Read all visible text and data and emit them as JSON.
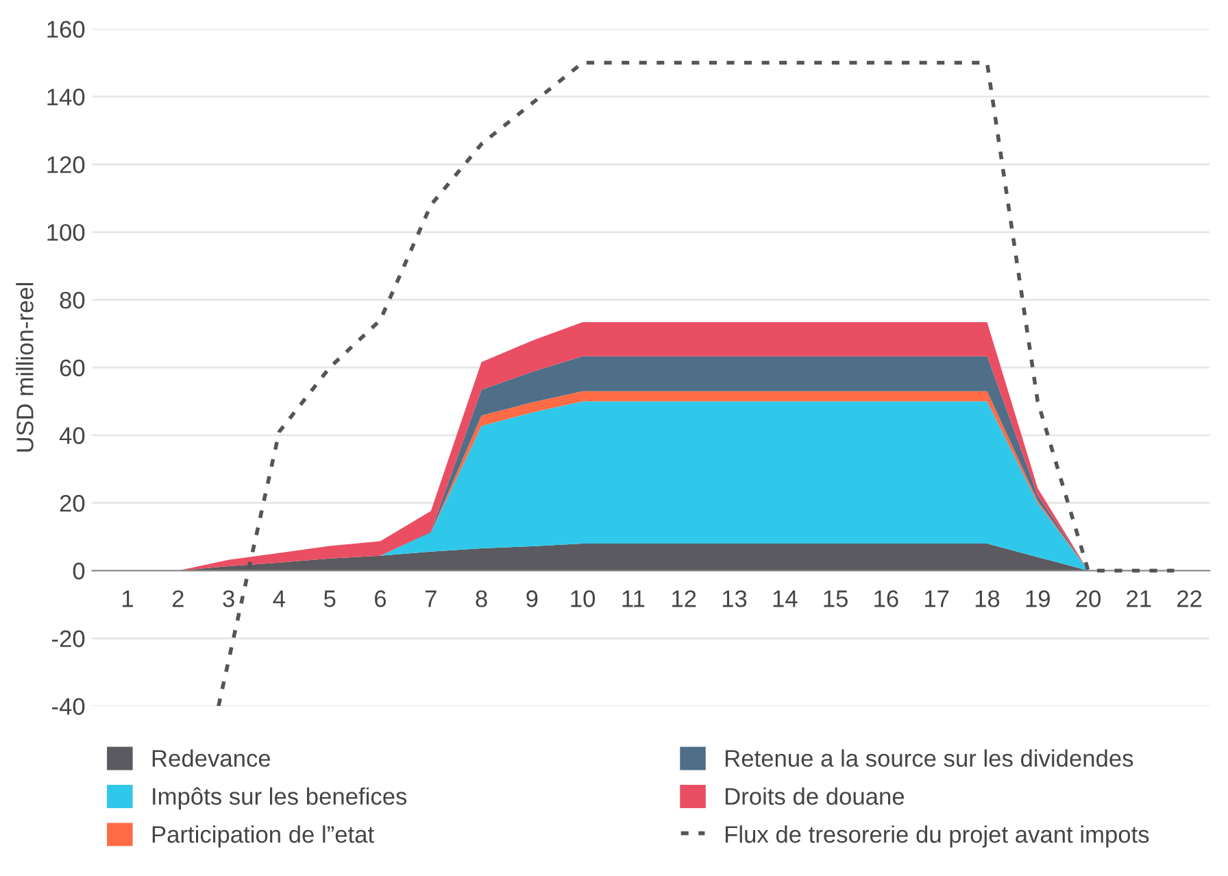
{
  "chart_data": {
    "type": "area",
    "stacked": true,
    "ylabel": "USD million-reel",
    "x": [
      2,
      3,
      4,
      5,
      6,
      7,
      8,
      9,
      10,
      11,
      12,
      13,
      14,
      15,
      16,
      17,
      18,
      19,
      20
    ],
    "xlim": [
      0.3,
      22.4
    ],
    "xticks": [
      1,
      2,
      3,
      4,
      5,
      6,
      7,
      8,
      9,
      10,
      11,
      12,
      13,
      14,
      15,
      16,
      17,
      18,
      19,
      20,
      21,
      22
    ],
    "ylim": [
      -40,
      160
    ],
    "yticks": [
      -40,
      -20,
      0,
      20,
      40,
      60,
      80,
      100,
      120,
      140,
      160
    ],
    "grid": "y",
    "legend": "bottom",
    "series": [
      {
        "name": "Redevance",
        "color": "#5a5a60",
        "values": [
          0,
          1.3,
          2.4,
          3.6,
          4.4,
          5.6,
          6.6,
          7.2,
          8,
          8,
          8,
          8,
          8,
          8,
          8,
          8,
          8,
          4,
          0
        ]
      },
      {
        "name": "Impôts sur les benefices",
        "color": "#30c8ea",
        "values": [
          0,
          0,
          0,
          0,
          0,
          5.6,
          36.1,
          39.5,
          42,
          42,
          42,
          42,
          42,
          42,
          42,
          42,
          42,
          16,
          0
        ]
      },
      {
        "name": "Participation de l”etat",
        "color": "#ff6b45",
        "values": [
          0,
          0,
          0,
          0,
          0,
          0,
          3.1,
          3,
          3,
          3,
          3,
          3,
          3,
          3,
          3,
          3,
          3,
          0.7,
          0
        ]
      },
      {
        "name": "Retenue a la source sur les dividendes",
        "color": "#4f6e88",
        "values": [
          0,
          0,
          0,
          0,
          0,
          0.3,
          7.6,
          9,
          10.3,
          10.3,
          10.3,
          10.3,
          10.3,
          10.3,
          10.3,
          10.3,
          10.3,
          1.5,
          0
        ]
      },
      {
        "name": "Droits de douane",
        "color": "#e94e63",
        "values": [
          0,
          1.9,
          2.8,
          3.7,
          4.3,
          6.1,
          8.2,
          9.2,
          10.1,
          10.1,
          10.1,
          10.1,
          10.1,
          10.1,
          10.1,
          10.1,
          10.1,
          2.2,
          0
        ]
      },
      {
        "name": "Flux de tresorerie du projet avant impots",
        "type": "line",
        "line_style": "dotted",
        "color": "#555555",
        "x": [
          2.8,
          4,
          5,
          6,
          7,
          8,
          10,
          18,
          19,
          20,
          21,
          21.7
        ],
        "values": [
          -40,
          41,
          60,
          74,
          108,
          126,
          150,
          150,
          50,
          0,
          0,
          0
        ]
      }
    ]
  }
}
